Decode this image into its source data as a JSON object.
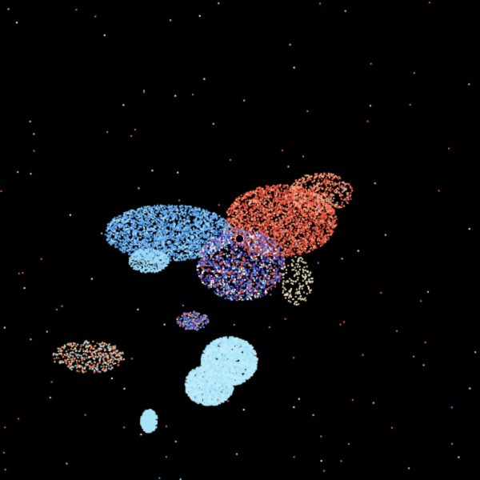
{
  "colors": {
    "background": "#000000",
    "outbound_red": "#f0644b",
    "outbound_light": "#f8b090",
    "inbound_blue": "#5aa0f0",
    "inbound_light": "#a8e4f8",
    "mixed_purple": "#7040c0",
    "neutral_cream": "#f0e6c0"
  }
}
